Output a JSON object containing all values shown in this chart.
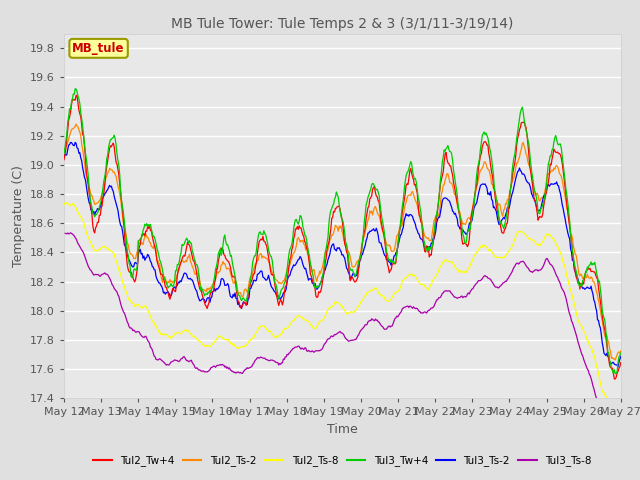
{
  "title": "MB Tule Tower: Tule Temps 2 & 3 (3/1/11-3/19/14)",
  "xlabel": "Time",
  "ylabel": "Temperature (C)",
  "ylim": [
    17.4,
    19.9
  ],
  "yticks": [
    17.4,
    17.6,
    17.8,
    18.0,
    18.2,
    18.4,
    18.6,
    18.8,
    19.0,
    19.2,
    19.4,
    19.6,
    19.8
  ],
  "xtick_labels": [
    "May 12",
    "May 13",
    "May 14",
    "May 15",
    "May 16",
    "May 17",
    "May 18",
    "May 19",
    "May 20",
    "May 21",
    "May 22",
    "May 23",
    "May 24",
    "May 25",
    "May 26",
    "May 27"
  ],
  "background_color": "#e0e0e0",
  "plot_background": "#e8e8e8",
  "grid_color": "#ffffff",
  "series": [
    {
      "name": "Tul2_Tw+4",
      "color": "#ff0000"
    },
    {
      "name": "Tul2_Ts-2",
      "color": "#ff8800"
    },
    {
      "name": "Tul2_Ts-8",
      "color": "#ffff00"
    },
    {
      "name": "Tul3_Tw+4",
      "color": "#00cc00"
    },
    {
      "name": "Tul3_Ts-2",
      "color": "#0000ff"
    },
    {
      "name": "Tul3_Ts-8",
      "color": "#aa00aa"
    }
  ],
  "annotation_text": "MB_tule",
  "annotation_color": "#cc0000",
  "annotation_bg": "#ffff99",
  "annotation_border": "#999900"
}
